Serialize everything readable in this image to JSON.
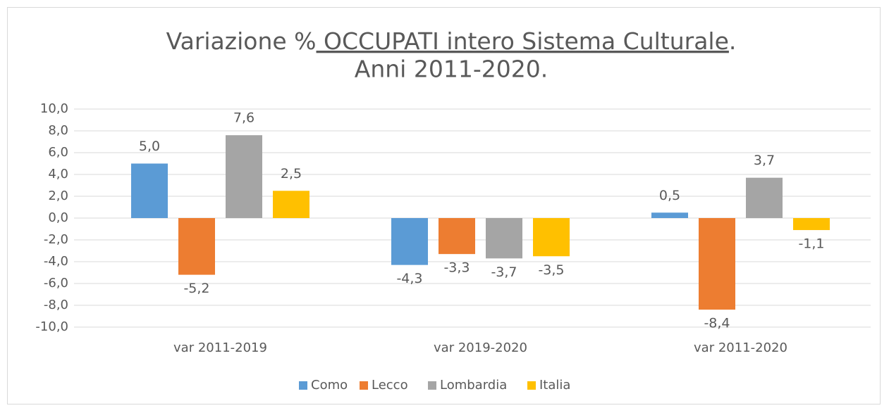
{
  "chart_data": {
    "type": "bar",
    "title_parts": [
      "Variazione %",
      " OCCUPATI intero Sistema Culturale",
      "."
    ],
    "subtitle": "Anni 2011-2020.",
    "categories": [
      "var 2011-2019",
      "var 2019-2020",
      "var 2011-2020"
    ],
    "series": [
      {
        "name": "Como",
        "color": "#5b9bd5",
        "values": [
          5.0,
          -4.3,
          0.5
        ],
        "value_labels": [
          "5,0",
          "-4,3",
          "0,5"
        ]
      },
      {
        "name": "Lecco",
        "color": "#ed7d31",
        "values": [
          -5.2,
          -3.3,
          -8.4
        ],
        "value_labels": [
          "-5,2",
          "-3,3",
          "-8,4"
        ]
      },
      {
        "name": "Lombardia",
        "color": "#a5a5a5",
        "values": [
          7.6,
          -3.7,
          3.7
        ],
        "value_labels": [
          "7,6",
          "-3,7",
          "3,7"
        ]
      },
      {
        "name": "Italia",
        "color": "#ffc000",
        "values": [
          2.5,
          -3.5,
          -1.1
        ],
        "value_labels": [
          "2,5",
          "-3,5",
          "-1,1"
        ]
      }
    ],
    "ylim": [
      -10,
      10
    ],
    "yticks": [
      {
        "value": -10,
        "label": "-10,0"
      },
      {
        "value": -8,
        "label": "-8,0"
      },
      {
        "value": -6,
        "label": "-6,0"
      },
      {
        "value": -4,
        "label": "-4,0"
      },
      {
        "value": -2,
        "label": "-2,0"
      },
      {
        "value": 0,
        "label": "0,0"
      },
      {
        "value": 2,
        "label": "2,0"
      },
      {
        "value": 4,
        "label": "4,0"
      },
      {
        "value": 6,
        "label": "6,0"
      },
      {
        "value": 8,
        "label": "8,0"
      },
      {
        "value": 10,
        "label": "10,0"
      }
    ],
    "grid": true,
    "legend": "bottom"
  }
}
